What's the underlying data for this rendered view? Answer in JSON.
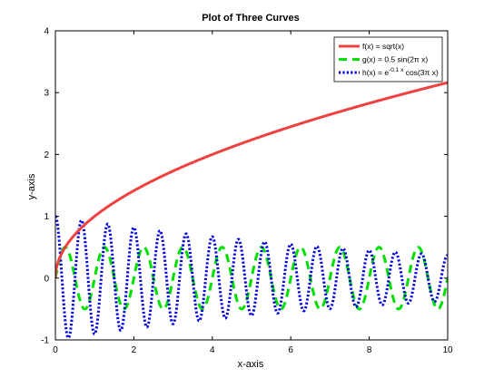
{
  "chart_data": {
    "type": "line",
    "title": "Plot of Three Curves",
    "xlabel": "x-axis",
    "ylabel": "y-axis",
    "xlim": [
      0,
      10
    ],
    "ylim": [
      -1,
      4
    ],
    "xticks": [
      0,
      2,
      4,
      6,
      8,
      10
    ],
    "yticks": [
      -1,
      0,
      1,
      2,
      3,
      4
    ],
    "grid": false,
    "legend_position": "top-right",
    "series": [
      {
        "name": "f(x) = sqrt(x)",
        "function": "sqrt(x)",
        "color": "#f04040",
        "style": "solid",
        "samples": [
          [
            0,
            0
          ],
          [
            1,
            1
          ],
          [
            2,
            1.414
          ],
          [
            4,
            2
          ],
          [
            6,
            2.449
          ],
          [
            8,
            2.828
          ],
          [
            10,
            3.162
          ]
        ]
      },
      {
        "name": "g(x) = 0.5 sin(2π x)",
        "function": "0.5*sin(2*pi*x)",
        "color": "#00e000",
        "style": "dashed",
        "samples": [
          [
            0,
            0
          ],
          [
            0.25,
            0.5
          ],
          [
            0.5,
            0
          ],
          [
            0.75,
            -0.5
          ],
          [
            1,
            0
          ]
        ]
      },
      {
        "name": "h(x) = e^(-0.1x) cos(3π x)",
        "function": "exp(-0.1*x)*cos(3*pi*x)",
        "color": "#0000e0",
        "style": "dotted",
        "samples": [
          [
            0,
            1
          ],
          [
            0.333,
            -0.967
          ],
          [
            0.667,
            0.936
          ],
          [
            5,
            -0.607
          ],
          [
            10,
            0.368
          ]
        ]
      }
    ],
    "legend_entries": [
      {
        "prefix": "f(x) = sqrt(x)",
        "sup": "",
        "suffix": ""
      },
      {
        "prefix": "g(x) = 0.5 sin(2π x)",
        "sup": "",
        "suffix": ""
      },
      {
        "prefix": "h(x) = e",
        "sup": "-0.1 x",
        "suffix": " cos(3π x)"
      }
    ]
  }
}
